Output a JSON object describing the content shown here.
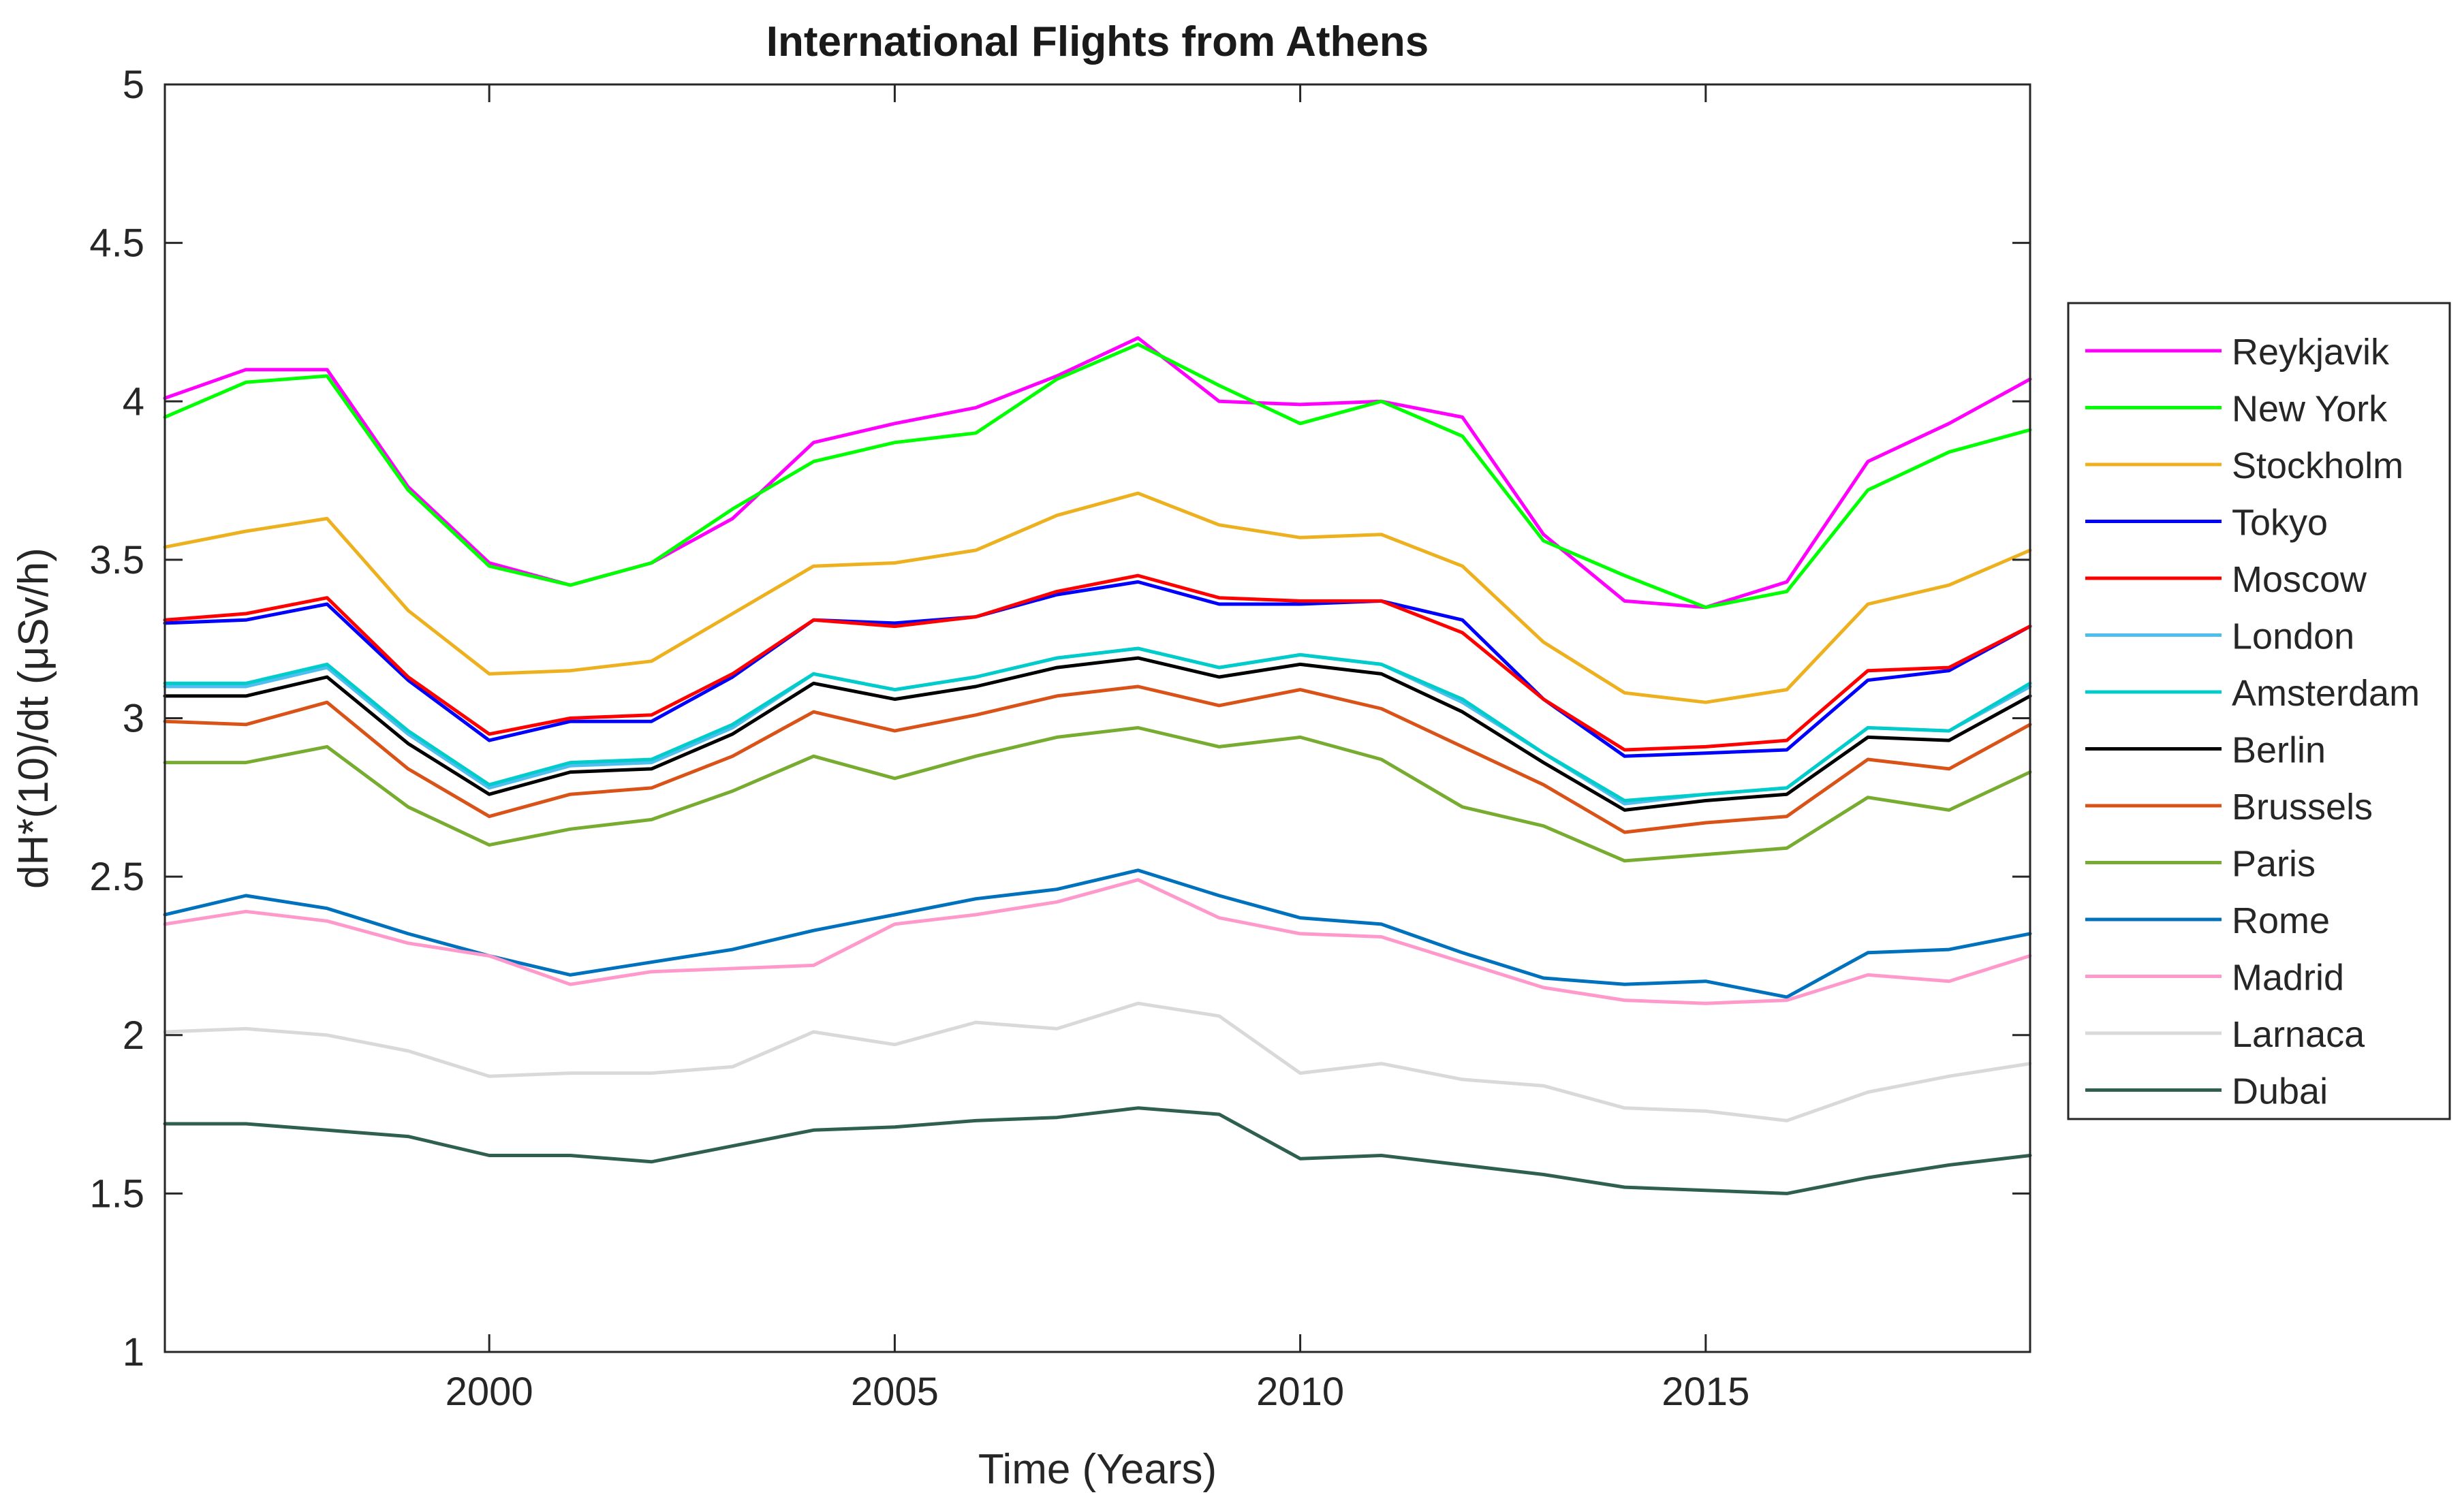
{
  "chart_data": {
    "type": "line",
    "title": "International Flights from Athens",
    "xlabel": "Time (Years)",
    "ylabel": "dH*(10)/dt (μSv/h)",
    "xlim": [
      1996,
      2019
    ],
    "ylim": [
      1,
      5
    ],
    "xticks": [
      2000,
      2005,
      2010,
      2015
    ],
    "xtick_labels": [
      "2000",
      "2005",
      "2010",
      "2015"
    ],
    "yticks": [
      1,
      1.5,
      2,
      2.5,
      3,
      3.5,
      4,
      4.5,
      5
    ],
    "ytick_labels": [
      "1",
      "1.5",
      "2",
      "2.5",
      "3",
      "3.5",
      "4",
      "4.5",
      "5"
    ],
    "grid": false,
    "legend_position": "outside-right",
    "x": [
      1996,
      1997,
      1998,
      1999,
      2000,
      2001,
      2002,
      2003,
      2004,
      2005,
      2006,
      2007,
      2008,
      2009,
      2010,
      2011,
      2012,
      2013,
      2014,
      2015,
      2016,
      2017,
      2018,
      2019
    ],
    "series": [
      {
        "name": "Reykjavik",
        "color": "#ff00ff",
        "values": [
          4.01,
          4.1,
          4.1,
          3.73,
          3.49,
          3.42,
          3.49,
          3.63,
          3.87,
          3.93,
          3.98,
          4.08,
          4.2,
          4.0,
          3.99,
          4.0,
          3.95,
          3.58,
          3.37,
          3.35,
          3.43,
          3.81,
          3.93,
          4.07
        ]
      },
      {
        "name": "New York",
        "color": "#00ff00",
        "values": [
          3.95,
          4.06,
          4.08,
          3.72,
          3.48,
          3.42,
          3.49,
          3.66,
          3.81,
          3.87,
          3.9,
          4.07,
          4.18,
          4.05,
          3.93,
          4.0,
          3.89,
          3.56,
          3.45,
          3.35,
          3.4,
          3.72,
          3.84,
          3.91
        ]
      },
      {
        "name": "Stockholm",
        "color": "#edb120",
        "values": [
          3.54,
          3.59,
          3.63,
          3.34,
          3.14,
          3.15,
          3.18,
          3.33,
          3.48,
          3.49,
          3.53,
          3.64,
          3.71,
          3.61,
          3.57,
          3.58,
          3.48,
          3.24,
          3.08,
          3.05,
          3.09,
          3.36,
          3.42,
          3.53
        ]
      },
      {
        "name": "Tokyo",
        "color": "#0000ff",
        "values": [
          3.3,
          3.31,
          3.36,
          3.12,
          2.93,
          2.99,
          2.99,
          3.13,
          3.31,
          3.3,
          3.32,
          3.39,
          3.43,
          3.36,
          3.36,
          3.37,
          3.31,
          3.06,
          2.88,
          2.89,
          2.9,
          3.12,
          3.15,
          3.29
        ]
      },
      {
        "name": "Moscow",
        "color": "#ff0000",
        "values": [
          3.31,
          3.33,
          3.38,
          3.13,
          2.95,
          3.0,
          3.01,
          3.14,
          3.31,
          3.29,
          3.32,
          3.4,
          3.45,
          3.38,
          3.37,
          3.37,
          3.27,
          3.06,
          2.9,
          2.91,
          2.93,
          3.15,
          3.16,
          3.29
        ]
      },
      {
        "name": "London",
        "color": "#4dbeee",
        "values": [
          3.1,
          3.1,
          3.16,
          2.95,
          2.78,
          2.85,
          2.86,
          2.97,
          3.14,
          3.09,
          3.13,
          3.19,
          3.22,
          3.16,
          3.2,
          3.17,
          3.05,
          2.89,
          2.73,
          2.76,
          2.78,
          2.97,
          2.96,
          3.1
        ]
      },
      {
        "name": "Amsterdam",
        "color": "#00cccc",
        "values": [
          3.11,
          3.11,
          3.17,
          2.96,
          2.79,
          2.86,
          2.87,
          2.98,
          3.14,
          3.09,
          3.13,
          3.19,
          3.22,
          3.16,
          3.2,
          3.17,
          3.06,
          2.89,
          2.74,
          2.76,
          2.78,
          2.97,
          2.96,
          3.11
        ]
      },
      {
        "name": "Berlin",
        "color": "#000000",
        "values": [
          3.07,
          3.07,
          3.13,
          2.92,
          2.76,
          2.83,
          2.84,
          2.95,
          3.11,
          3.06,
          3.1,
          3.16,
          3.19,
          3.13,
          3.17,
          3.14,
          3.02,
          2.86,
          2.71,
          2.74,
          2.76,
          2.94,
          2.93,
          3.07
        ]
      },
      {
        "name": "Brussels",
        "color": "#d95319",
        "values": [
          2.99,
          2.98,
          3.05,
          2.84,
          2.69,
          2.76,
          2.78,
          2.88,
          3.02,
          2.96,
          3.01,
          3.07,
          3.1,
          3.04,
          3.09,
          3.03,
          2.91,
          2.79,
          2.64,
          2.67,
          2.69,
          2.87,
          2.84,
          2.98
        ]
      },
      {
        "name": "Paris",
        "color": "#77ac30",
        "values": [
          2.86,
          2.86,
          2.91,
          2.72,
          2.6,
          2.65,
          2.68,
          2.77,
          2.88,
          2.81,
          2.88,
          2.94,
          2.97,
          2.91,
          2.94,
          2.87,
          2.72,
          2.66,
          2.55,
          2.57,
          2.59,
          2.75,
          2.71,
          2.83
        ]
      },
      {
        "name": "Rome",
        "color": "#0072bd",
        "values": [
          2.38,
          2.44,
          2.4,
          2.32,
          2.25,
          2.19,
          2.23,
          2.27,
          2.33,
          2.38,
          2.43,
          2.46,
          2.52,
          2.44,
          2.37,
          2.35,
          2.26,
          2.18,
          2.16,
          2.17,
          2.12,
          2.26,
          2.27,
          2.32
        ]
      },
      {
        "name": "Madrid",
        "color": "#ff99cc",
        "values": [
          2.35,
          2.39,
          2.36,
          2.29,
          2.25,
          2.16,
          2.2,
          2.21,
          2.22,
          2.35,
          2.38,
          2.42,
          2.49,
          2.37,
          2.32,
          2.31,
          2.23,
          2.15,
          2.11,
          2.1,
          2.11,
          2.19,
          2.17,
          2.25
        ]
      },
      {
        "name": "Larnaca",
        "color": "#d9d9d9",
        "values": [
          2.01,
          2.02,
          2.0,
          1.95,
          1.87,
          1.88,
          1.88,
          1.9,
          2.01,
          1.97,
          2.04,
          2.02,
          2.1,
          2.06,
          1.88,
          1.91,
          1.86,
          1.84,
          1.77,
          1.76,
          1.73,
          1.82,
          1.87,
          1.91
        ]
      },
      {
        "name": "Dubai",
        "color": "#2f5f50",
        "values": [
          1.72,
          1.72,
          1.7,
          1.68,
          1.62,
          1.62,
          1.6,
          1.65,
          1.7,
          1.71,
          1.73,
          1.74,
          1.77,
          1.75,
          1.61,
          1.62,
          1.59,
          1.56,
          1.52,
          1.51,
          1.5,
          1.55,
          1.59,
          1.62
        ]
      }
    ]
  }
}
